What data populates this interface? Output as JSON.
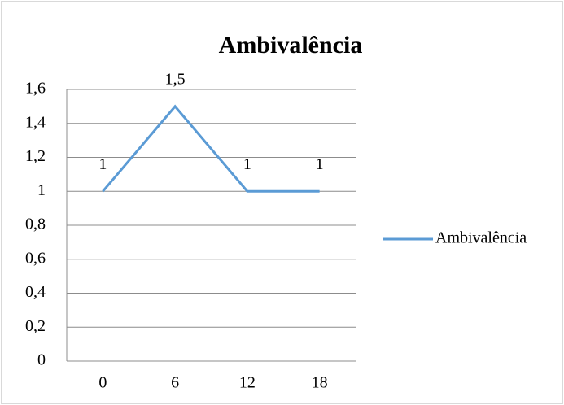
{
  "chart_data": {
    "type": "line",
    "title": "Ambivalência",
    "categories": [
      "0",
      "6",
      "12",
      "18"
    ],
    "series": [
      {
        "name": "Ambivalência",
        "color": "#5b9bd5",
        "values": [
          1,
          1.5,
          1,
          1
        ],
        "value_labels": [
          "1",
          "1,5",
          "1",
          "1"
        ]
      }
    ],
    "ylim": [
      0,
      1.6
    ],
    "yticks": [
      0,
      {
        "value": 0.2,
        "label": "0,2"
      },
      {
        "value": 0.4,
        "label": "0,4"
      },
      {
        "value": 0.6,
        "label": "0,6"
      },
      {
        "value": 0.8,
        "label": "0,8"
      },
      1,
      {
        "value": 1.2,
        "label": "1,2"
      },
      {
        "value": 1.4,
        "label": "1,4"
      },
      {
        "value": 1.6,
        "label": "1,6"
      }
    ],
    "grid": true,
    "legend": "right"
  }
}
